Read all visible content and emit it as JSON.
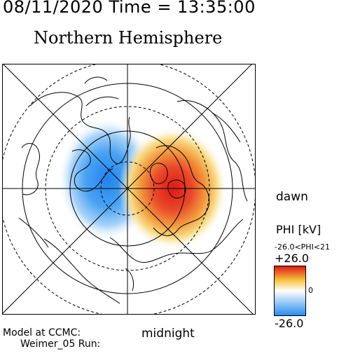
{
  "header": {
    "timestamp": "08/11/2020 Time = 13:35:00",
    "hemisphere": "Northern Hemisphere"
  },
  "map_labels": {
    "dawn": "dawn",
    "midnight": "midnight"
  },
  "colorbar": {
    "label": "PHI [kV]",
    "range_text": "-26.0<PHI<21",
    "max_label": "+26.0",
    "zero_label": "0",
    "min_label": "-26.0",
    "colors": {
      "negative": "#2a8cf0",
      "zero": "#ffffff",
      "positive_mid": "#f6c23a",
      "positive": "#e01818"
    }
  },
  "footer": {
    "model_line": "Model at CCMC:",
    "run_line": "Weimer_05 Run:"
  }
}
